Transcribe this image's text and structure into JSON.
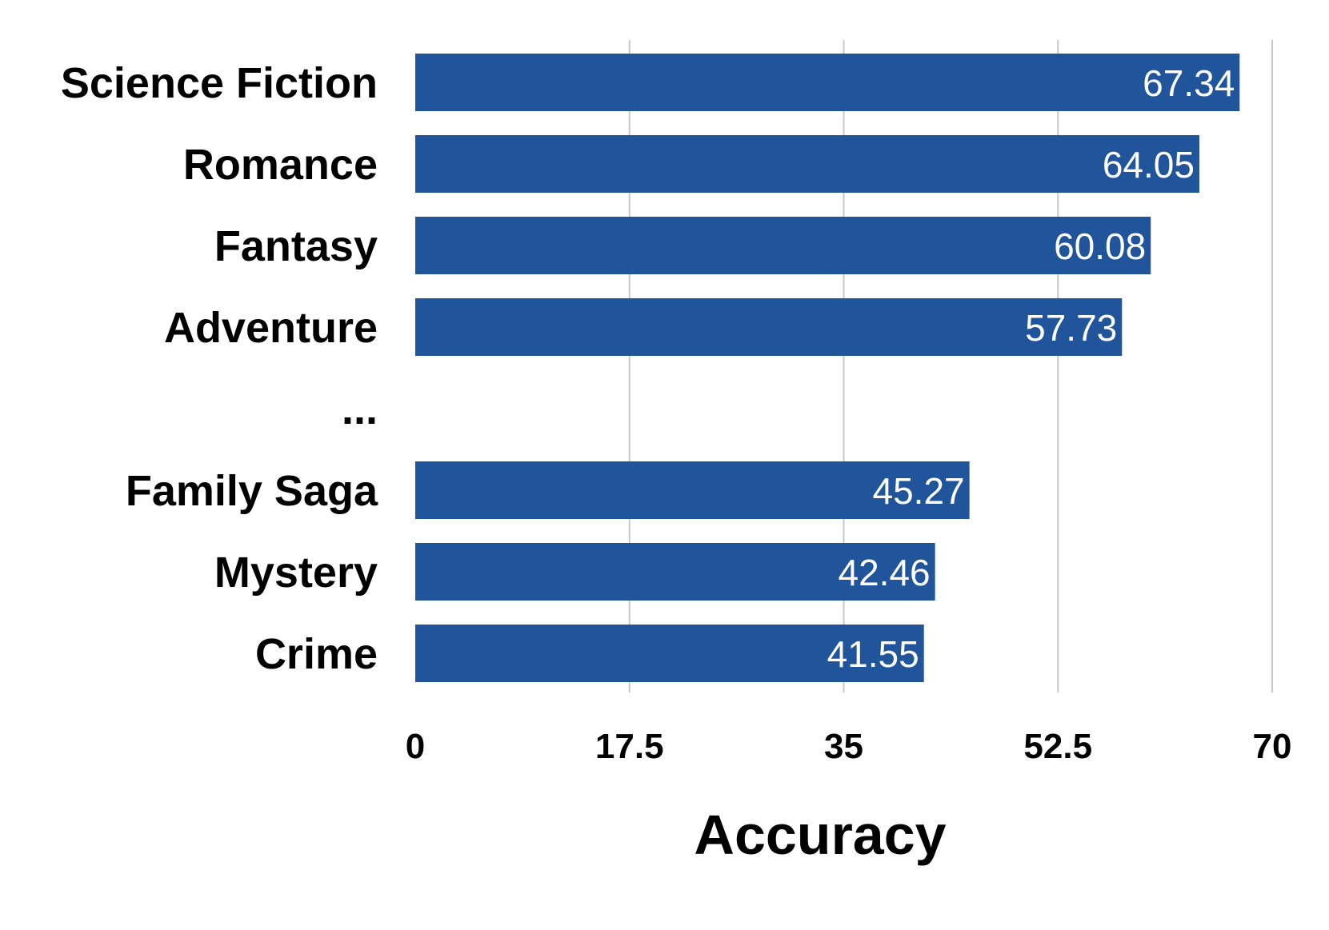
{
  "chart_data": {
    "type": "bar",
    "orientation": "horizontal",
    "categories": [
      "Science Fiction",
      "Romance",
      "Fantasy",
      "Adventure",
      "...",
      "Family Saga",
      "Mystery",
      "Crime"
    ],
    "values": [
      67.34,
      64.05,
      60.08,
      57.73,
      null,
      45.27,
      42.46,
      41.55
    ],
    "value_labels": [
      "67.34",
      "64.05",
      "60.08",
      "57.73",
      "",
      "45.27",
      "42.46",
      "41.55"
    ],
    "xlabel": "Accuracy",
    "ylabel": "",
    "xlim": [
      0,
      70
    ],
    "x_ticks": [
      0,
      17.5,
      35,
      52.5,
      70
    ],
    "x_tick_labels": [
      "0",
      "17.5",
      "35",
      "52.5",
      "70"
    ],
    "grid": true,
    "bar_color": "#20549b",
    "grid_color": "#c8c8c8"
  }
}
